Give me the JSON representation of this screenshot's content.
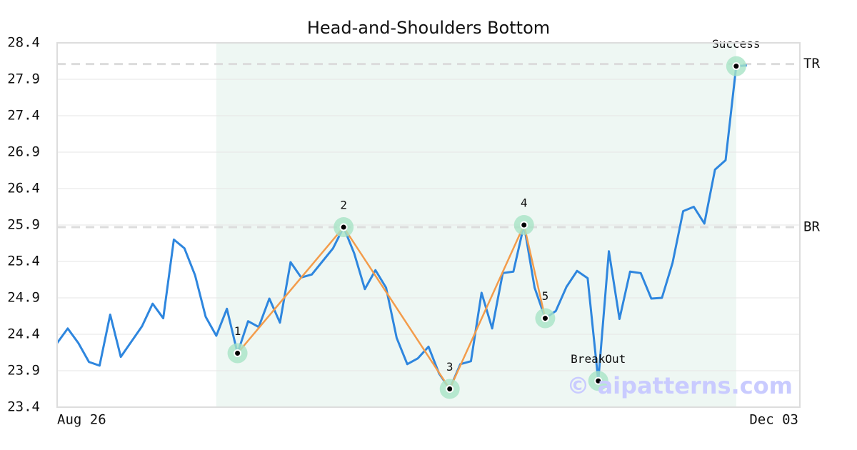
{
  "chart_data": {
    "type": "line",
    "title": "Head-and-Shoulders Bottom",
    "categories": [
      "Aug 26",
      null,
      null,
      null,
      null,
      null,
      null,
      null,
      null,
      null,
      null,
      null,
      null,
      null,
      null,
      null,
      null,
      null,
      null,
      null,
      null,
      null,
      null,
      null,
      null,
      null,
      null,
      null,
      null,
      null,
      null,
      null,
      null,
      null,
      null,
      null,
      null,
      null,
      null,
      null,
      null,
      null,
      null,
      null,
      null,
      null,
      null,
      null,
      null,
      null,
      null,
      null,
      null,
      null,
      null,
      null,
      null,
      null,
      null,
      null,
      null,
      null,
      null,
      null,
      null,
      null,
      null,
      null,
      null,
      null,
      "Dec 03"
    ],
    "values": [
      24.28,
      24.48,
      24.28,
      24.02,
      23.97,
      24.67,
      24.09,
      24.3,
      24.51,
      24.82,
      24.62,
      25.7,
      25.58,
      25.21,
      24.64,
      24.38,
      24.75,
      24.14,
      24.58,
      24.5,
      24.89,
      24.56,
      25.39,
      25.18,
      25.22,
      25.4,
      25.58,
      25.87,
      25.51,
      25.02,
      25.28,
      25.04,
      24.35,
      23.99,
      24.07,
      24.23,
      23.86,
      23.65,
      23.99,
      24.03,
      24.97,
      24.48,
      25.24,
      25.26,
      25.9,
      25.04,
      24.62,
      24.72,
      25.05,
      25.27,
      25.17,
      23.76,
      25.54,
      24.61,
      25.26,
      25.24,
      24.89,
      24.9,
      25.38,
      26.09,
      26.15,
      25.92,
      26.66,
      26.79,
      28.08,
      28.09,
      null,
      null,
      null,
      null,
      null
    ],
    "color": "#2e86de",
    "pattern_color": "#f39c4b",
    "pattern_points": [
      {
        "label": "1",
        "index": 17,
        "value": 24.14
      },
      {
        "label": "2",
        "index": 27,
        "value": 25.87
      },
      {
        "label": "3",
        "index": 37,
        "value": 23.65
      },
      {
        "label": "4",
        "index": 44,
        "value": 25.9
      },
      {
        "label": "5",
        "index": 46,
        "value": 24.62
      }
    ],
    "event_points": [
      {
        "label": "BreakOut",
        "index": 51,
        "value": 23.76
      },
      {
        "label": "Success",
        "index": 64,
        "value": 28.08
      }
    ],
    "levels": [
      {
        "label": "TR",
        "value": 28.11
      },
      {
        "label": "BR",
        "value": 25.87
      }
    ],
    "highlight": [
      15,
      64
    ],
    "watermark": "© aipatterns.com",
    "ylim": [
      23.4,
      28.4
    ],
    "yticks": [
      23.4,
      23.9,
      24.4,
      24.9,
      25.4,
      25.9,
      26.4,
      26.9,
      27.4,
      27.9,
      28.4
    ],
    "grid": true
  }
}
